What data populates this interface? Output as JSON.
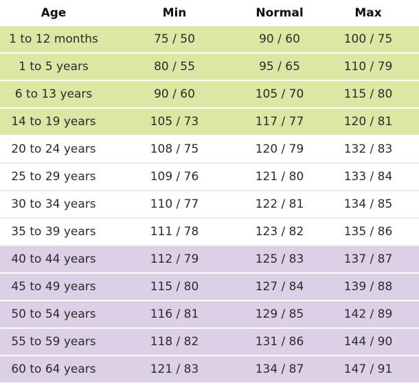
{
  "table": {
    "headers": [
      "Age",
      "Min",
      "Normal",
      "Max"
    ],
    "rows": [
      {
        "group": "green",
        "age": "1 to 12 months",
        "min": "75 / 50",
        "normal": "90 / 60",
        "max": "100 / 75"
      },
      {
        "group": "green",
        "age": "1 to 5 years",
        "min": "80 / 55",
        "normal": "95 / 65",
        "max": "110 / 79"
      },
      {
        "group": "green",
        "age": "6 to 13 years",
        "min": "90 / 60",
        "normal": "105 / 70",
        "max": "115 / 80"
      },
      {
        "group": "green",
        "age": "14 to 19 years",
        "min": "105 / 73",
        "normal": "117 / 77",
        "max": "120 / 81"
      },
      {
        "group": "white",
        "age": "20 to 24 years",
        "min": "108 / 75",
        "normal": "120 / 79",
        "max": "132 / 83"
      },
      {
        "group": "white",
        "age": "25 to 29 years",
        "min": "109 / 76",
        "normal": "121 / 80",
        "max": "133 / 84"
      },
      {
        "group": "white",
        "age": "30 to 34 years",
        "min": "110 / 77",
        "normal": "122 / 81",
        "max": "134 / 85"
      },
      {
        "group": "white",
        "age": "35 to 39 years",
        "min": "111 / 78",
        "normal": "123 / 82",
        "max": "135 / 86"
      },
      {
        "group": "purple",
        "age": "40 to 44 years",
        "min": "112 / 79",
        "normal": "125 / 83",
        "max": "137 / 87"
      },
      {
        "group": "purple",
        "age": "45 to 49 years",
        "min": "115 / 80",
        "normal": "127 / 84",
        "max": "139 / 88"
      },
      {
        "group": "purple",
        "age": "50 to 54 years",
        "min": "116 / 81",
        "normal": "129 / 85",
        "max": "142 / 89"
      },
      {
        "group": "purple",
        "age": "55 to 59 years",
        "min": "118 / 82",
        "normal": "131 / 86",
        "max": "144 / 90"
      },
      {
        "group": "purple",
        "age": "60 to 64 years",
        "min": "121 / 83",
        "normal": "134 / 87",
        "max": "147 / 91"
      }
    ]
  },
  "colors": {
    "green": "#dde6a3",
    "white": "#ffffff",
    "purple": "#dcd0e6"
  }
}
